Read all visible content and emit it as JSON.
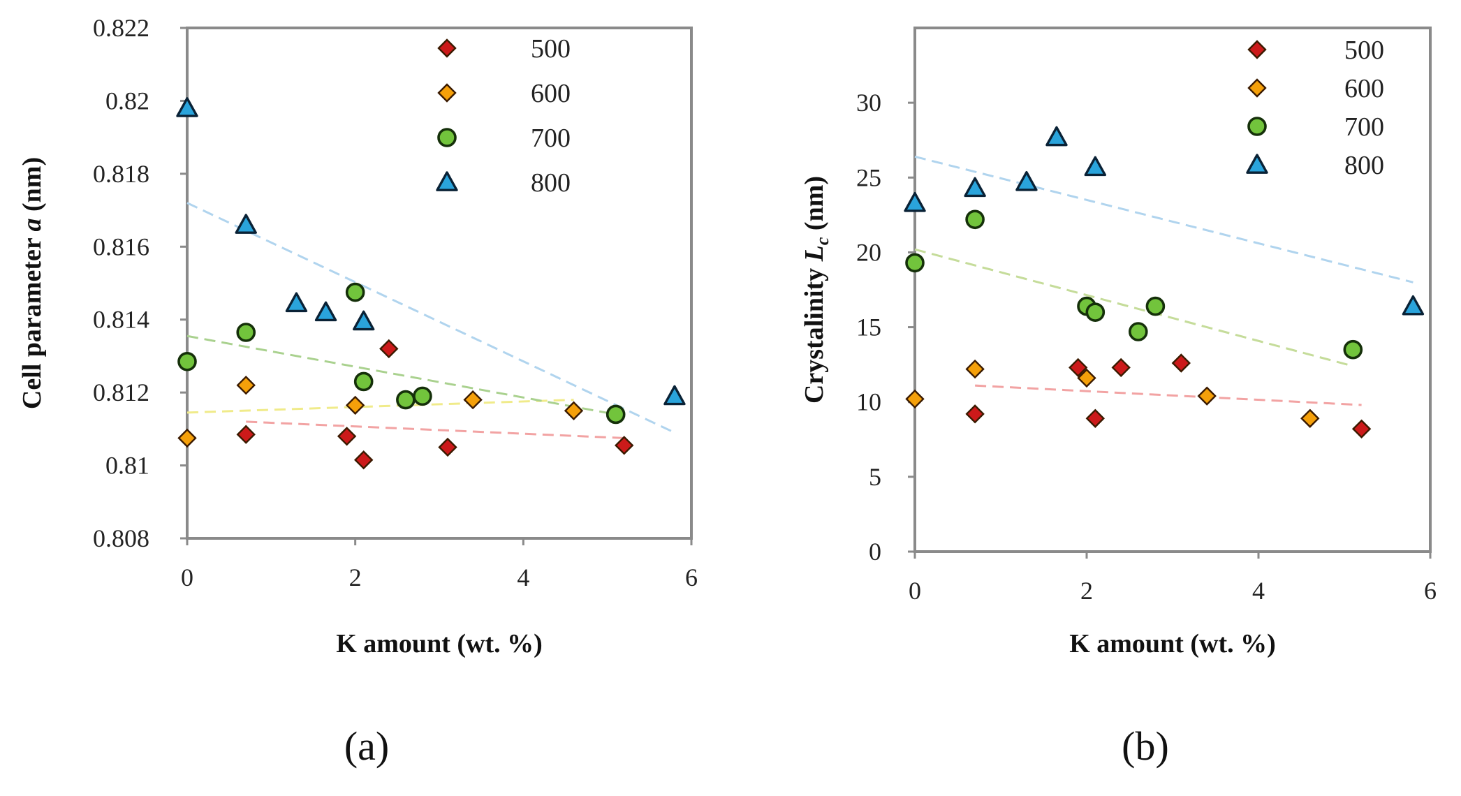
{
  "chart_data": [
    {
      "type": "scatter",
      "panel": "a",
      "caption": "(a)",
      "xlabel": "K amount (wt. %)",
      "ylabel_prefix": "Cell parameter ",
      "ylabel_italic": "a",
      "ylabel_suffix": " (nm)",
      "xlim": [
        0,
        6
      ],
      "ylim": [
        0.808,
        0.822
      ],
      "xticks": [
        0,
        2,
        4,
        6
      ],
      "xtick_labels": [
        "0",
        "2",
        "4",
        "6"
      ],
      "yticks": [
        0.808,
        0.81,
        0.812,
        0.814,
        0.816,
        0.818,
        0.82,
        0.822
      ],
      "ytick_labels": [
        "0.808",
        "0.81",
        "0.812",
        "0.814",
        "0.816",
        "0.818",
        "0.82",
        "0.822"
      ],
      "legend_position": "top-right",
      "series": [
        {
          "name": "500",
          "marker": "diamond",
          "color": "#cc1a1a",
          "x": [
            0.7,
            1.9,
            2.1,
            2.4,
            3.1,
            5.2
          ],
          "y": [
            0.81085,
            0.8108,
            0.81015,
            0.8132,
            0.8105,
            0.81055
          ],
          "trend": {
            "x": [
              0.7,
              5.2
            ],
            "y": [
              0.8112,
              0.81075
            ],
            "color": "#f2a3a3"
          }
        },
        {
          "name": "600",
          "marker": "diamond",
          "color": "#f5a00a",
          "x": [
            0,
            0.7,
            2.0,
            3.4,
            4.6
          ],
          "y": [
            0.81075,
            0.8122,
            0.81165,
            0.8118,
            0.8115
          ],
          "trend": {
            "x": [
              0,
              4.6
            ],
            "y": [
              0.81145,
              0.8118
            ],
            "color": "#f0eb8a"
          }
        },
        {
          "name": "700",
          "marker": "circle",
          "color": "#72c43c",
          "x": [
            0,
            0.7,
            2.0,
            2.1,
            2.6,
            2.8,
            5.1
          ],
          "y": [
            0.81285,
            0.81365,
            0.81475,
            0.8123,
            0.8118,
            0.8119,
            0.8114
          ],
          "trend": {
            "x": [
              0,
              5.1
            ],
            "y": [
              0.81355,
              0.8114
            ],
            "color": "#a9d18e"
          }
        },
        {
          "name": "800",
          "marker": "triangle",
          "color": "#2aa4dc",
          "x": [
            0,
            0.7,
            1.3,
            1.65,
            2.1,
            5.8
          ],
          "y": [
            0.8198,
            0.8166,
            0.81445,
            0.8142,
            0.81395,
            0.8119
          ],
          "trend": {
            "x": [
              0,
              5.8
            ],
            "y": [
              0.8172,
              0.8109
            ],
            "color": "#b0d4ee"
          }
        }
      ]
    },
    {
      "type": "scatter",
      "panel": "b",
      "caption": "(b)",
      "xlabel": "K amount (wt. %)",
      "ylabel_prefix": "Crystalinity ",
      "ylabel_italic": "L",
      "ylabel_sub": "c",
      "ylabel_suffix": " (nm)",
      "xlim": [
        0,
        6
      ],
      "ylim": [
        0,
        35
      ],
      "xticks": [
        0,
        2,
        4,
        6
      ],
      "xtick_labels": [
        "0",
        "2",
        "4",
        "6"
      ],
      "yticks": [
        0,
        5,
        10,
        15,
        20,
        25,
        30
      ],
      "ytick_labels": [
        "0",
        "5",
        "10",
        "15",
        "20",
        "25",
        "30"
      ],
      "legend_position": "top-right",
      "series": [
        {
          "name": "500",
          "marker": "diamond",
          "color": "#cc1a1a",
          "x": [
            0.7,
            1.9,
            2.1,
            2.4,
            3.1,
            5.2
          ],
          "y": [
            9.2,
            12.3,
            8.9,
            12.3,
            12.6,
            8.2
          ],
          "trend": {
            "x": [
              0.7,
              5.2
            ],
            "y": [
              11.1,
              9.8
            ],
            "color": "#f2a3a3"
          }
        },
        {
          "name": "600",
          "marker": "diamond",
          "color": "#f5a00a",
          "x": [
            0,
            0.7,
            2.0,
            3.4,
            4.6
          ],
          "y": [
            10.2,
            12.2,
            11.6,
            10.4,
            8.9
          ],
          "trend": null
        },
        {
          "name": "700",
          "marker": "circle",
          "color": "#72c43c",
          "x": [
            0,
            0.7,
            2.0,
            2.1,
            2.6,
            2.8,
            5.1
          ],
          "y": [
            19.3,
            22.2,
            16.4,
            16.0,
            14.7,
            16.4,
            13.5
          ],
          "trend": {
            "x": [
              0,
              5.1
            ],
            "y": [
              20.2,
              12.4
            ],
            "color": "#c5dc9a"
          }
        },
        {
          "name": "800",
          "marker": "triangle",
          "color": "#2aa4dc",
          "x": [
            0,
            0.7,
            1.3,
            1.65,
            2.1,
            5.8
          ],
          "y": [
            23.3,
            24.3,
            24.7,
            27.7,
            25.7,
            16.4
          ],
          "trend": {
            "x": [
              0,
              5.8
            ],
            "y": [
              26.4,
              18.0
            ],
            "color": "#b0d4ee"
          }
        }
      ]
    }
  ]
}
